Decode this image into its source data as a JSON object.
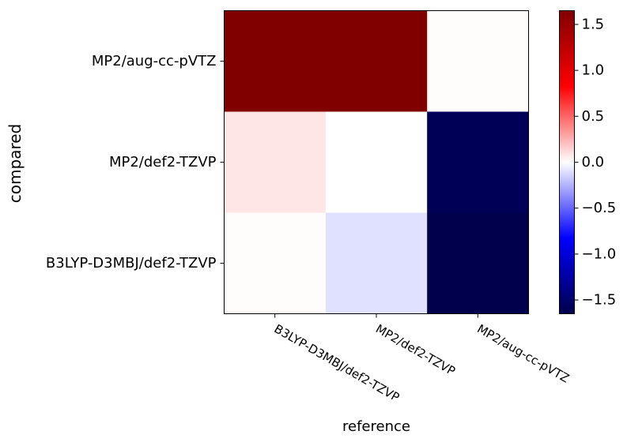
{
  "chart_data": {
    "type": "heatmap",
    "title": "",
    "xlabel": "reference",
    "ylabel": "compared",
    "x_categories": [
      "B3LYP-D3MBJ/def2-TZVP",
      "MP2/def2-TZVP",
      "MP2/aug-cc-pVTZ"
    ],
    "y_categories": [
      "MP2/aug-cc-pVTZ",
      "MP2/def2-TZVP",
      "B3LYP-D3MBJ/def2-TZVP"
    ],
    "values": [
      [
        1.65,
        1.65,
        0.01
      ],
      [
        0.08,
        0.0,
        -1.6
      ],
      [
        0.01,
        -0.1,
        -1.65
      ]
    ],
    "colormap": "seismic",
    "colorbar": {
      "range": [
        -1.65,
        1.65
      ],
      "ticks": [
        -1.5,
        -1.0,
        -0.5,
        0.0,
        0.5,
        1.0,
        1.5
      ],
      "tick_labels": [
        "−1.5",
        "−1.0",
        "−0.5",
        "0.0",
        "0.5",
        "1.0",
        "1.5"
      ]
    },
    "grid": false
  }
}
